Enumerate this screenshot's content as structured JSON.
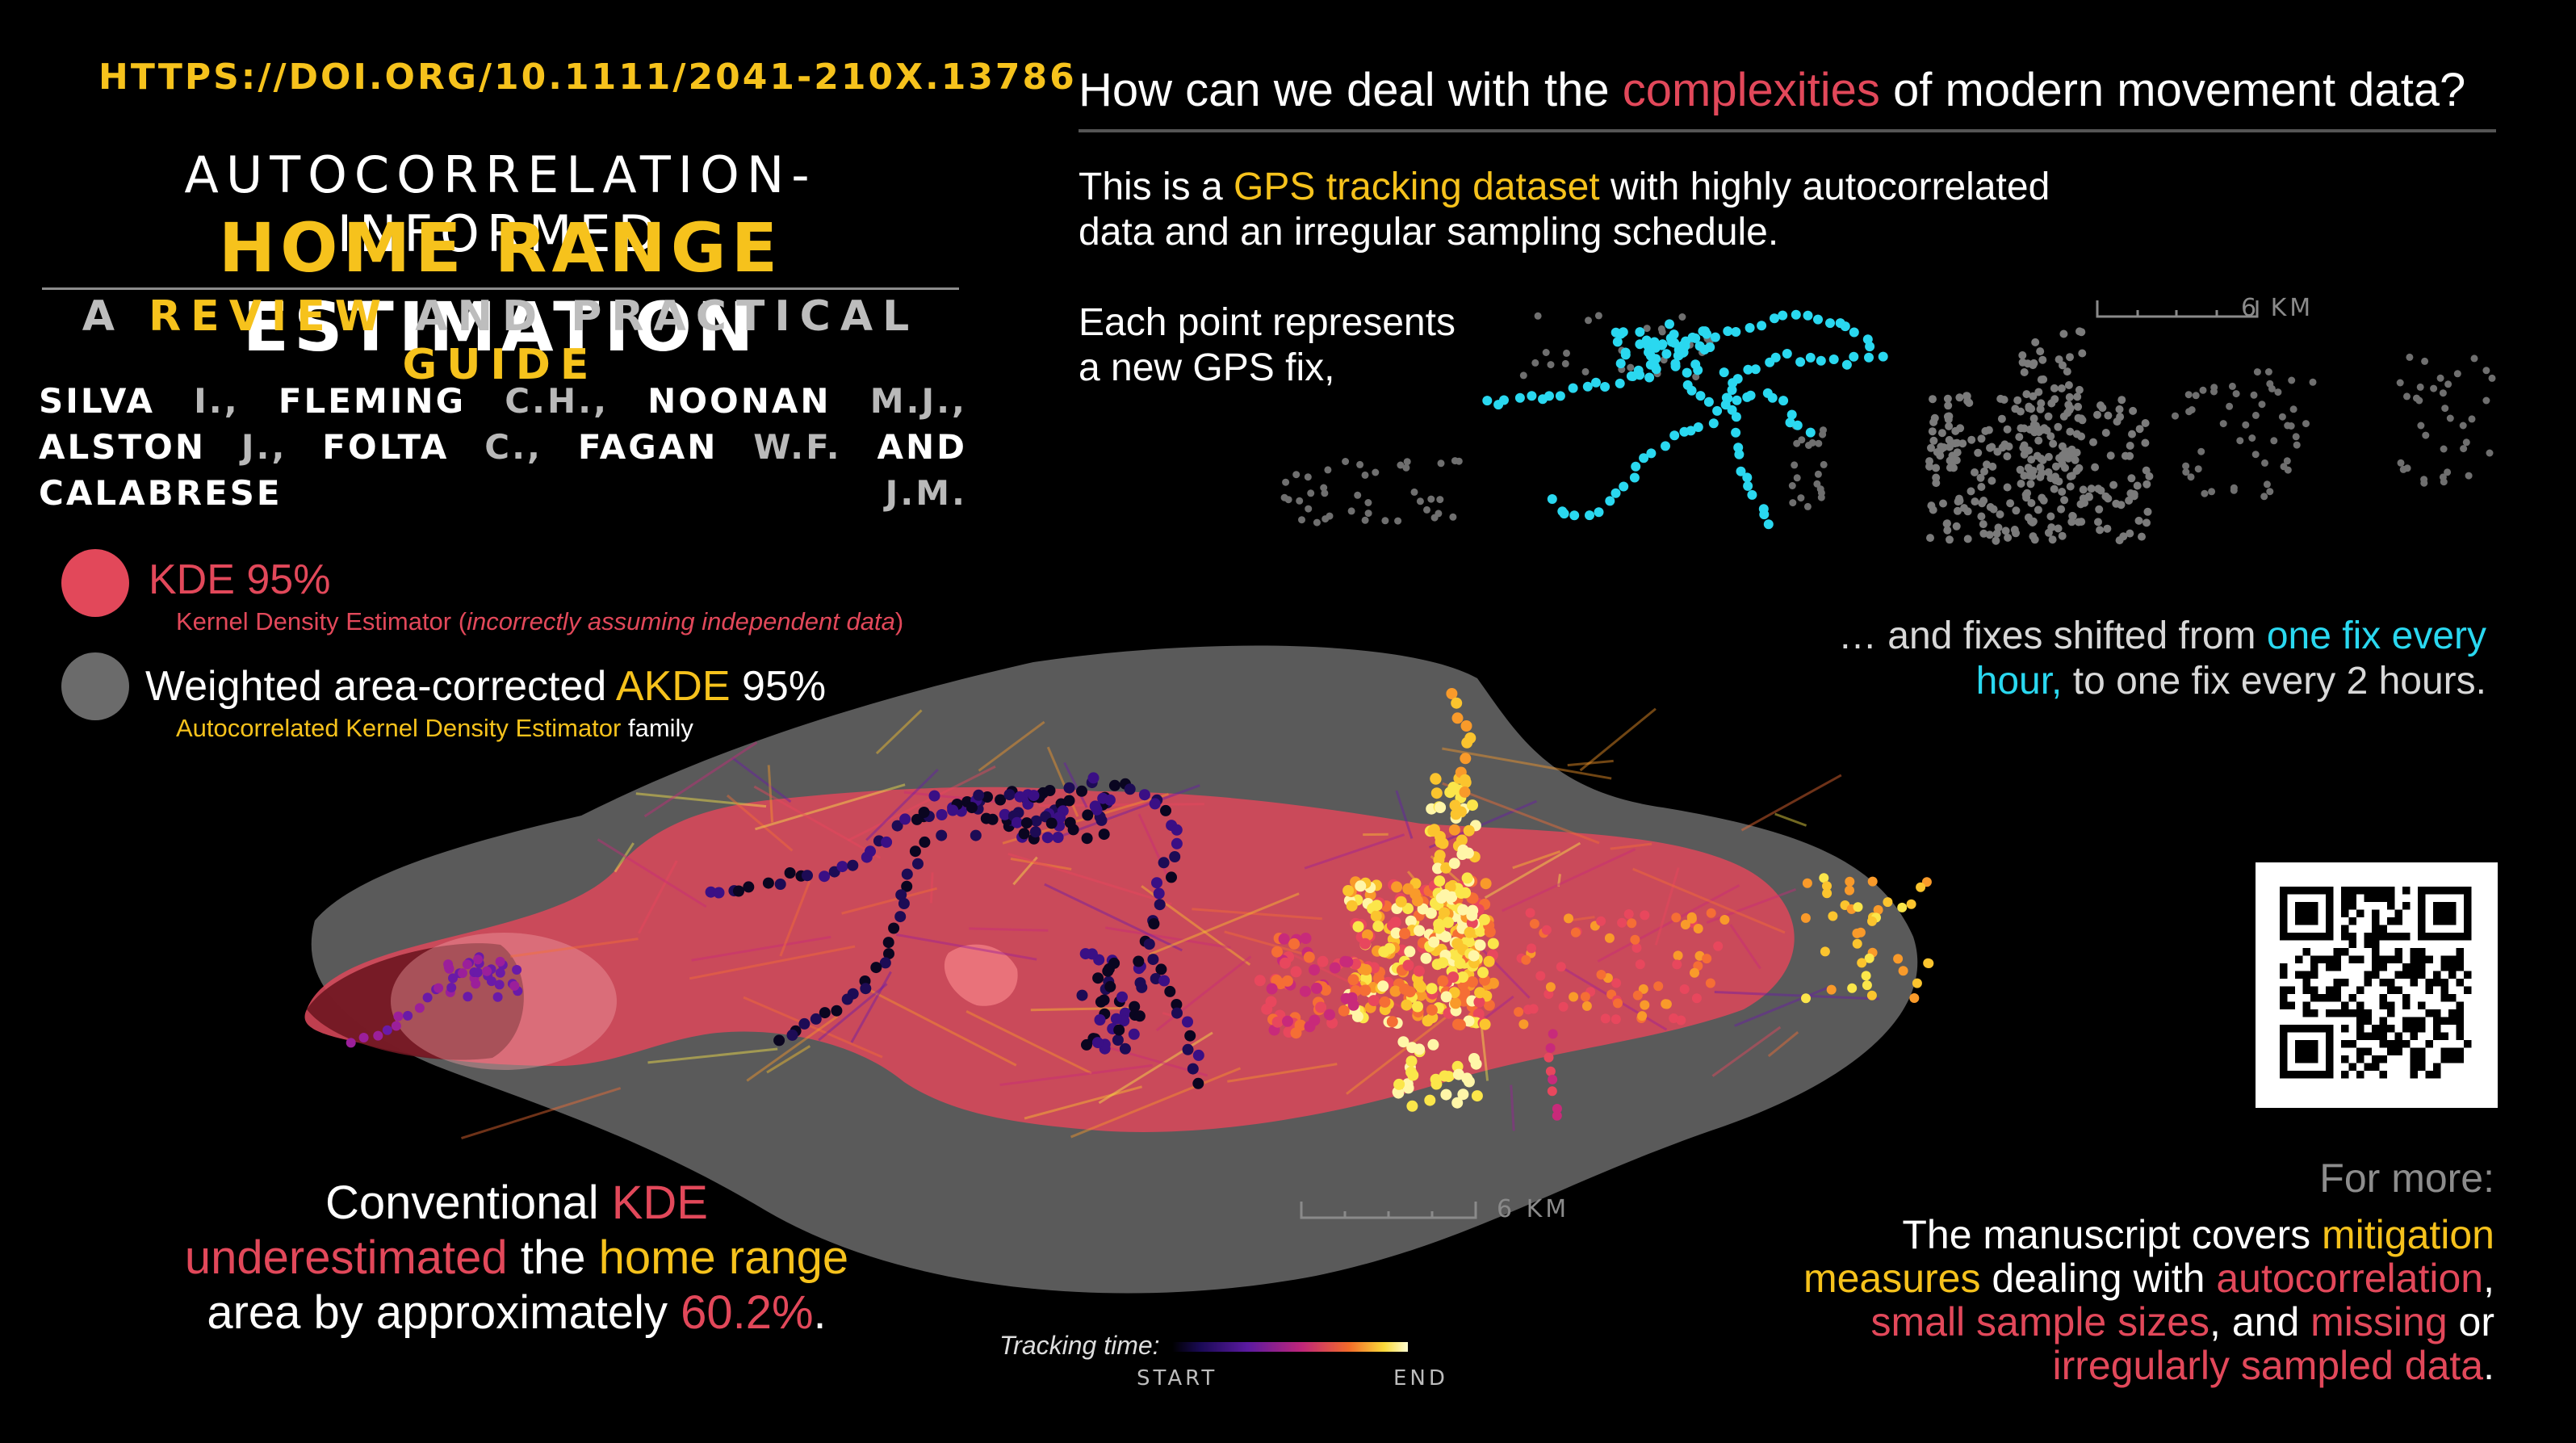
{
  "header": {
    "doi": "HTTPS://DOI.ORG/10.1111/2041-210X.13786",
    "title_line1": "AUTOCORRELATION-INFORMED",
    "title_line2_a": "HOME RANGE",
    "title_line2_b": " ESTIMATION",
    "subtitle_a": "A ",
    "subtitle_b": "REVIEW",
    "subtitle_c": " AND PRACTICAL ",
    "subtitle_d": "GUIDE",
    "authors": [
      {
        "name": "SILVA",
        "init": " I.,"
      },
      {
        "name": " FLEMING",
        "init": " C.H.,"
      },
      {
        "name": " NOONAN",
        "init": " M.J.,"
      },
      {
        "name": " ALSTON",
        "init": " J.,"
      },
      {
        "name": " FOLTA",
        "init": " C.,"
      },
      {
        "name": " FAGAN",
        "init": " W.F."
      },
      {
        "name": " AND",
        "init": ""
      },
      {
        "name": " CALABRESE",
        "init": " J.M."
      }
    ]
  },
  "legend": {
    "kde_label": "KDE 95%",
    "kde_desc_a": "Kernel Density Estimator (",
    "kde_desc_b": "incorrectly assuming independent data",
    "kde_desc_c": ")",
    "akde_label_a": "Weighted area-corrected ",
    "akde_label_b": "AKDE",
    "akde_label_c": " 95%",
    "akde_desc_a": "Autocorrelated Kernel Density Estimator",
    "akde_desc_b": " family"
  },
  "question": {
    "a": "How can we deal with the ",
    "b": "complexities",
    "c": " of modern movement data?"
  },
  "para1": {
    "a": "This is a ",
    "b": "GPS tracking dataset",
    "c": " with highly autocorrelated",
    "d": "data and an irregular sampling schedule."
  },
  "para2": {
    "line1": "Each point represents",
    "line2": "a new GPS fix,"
  },
  "para3": {
    "a": "… and fixes shifted from ",
    "b": "one fix every",
    "c": "hour,",
    "d": " to one fix every 2 hours."
  },
  "scale_label": "6 KM",
  "conclusion": {
    "a": "Conventional ",
    "b": "KDE",
    "c": "underestimated",
    "d": " the ",
    "e": "home range",
    "f": "area by approximately ",
    "g": "60.2%",
    "h": "."
  },
  "tracking": {
    "label": "Tracking time:",
    "start": "START",
    "end": "END"
  },
  "formore": "For more:",
  "manuscript": {
    "a": "The manuscript covers ",
    "b": "mitigation",
    "c": "measures",
    "d": " dealing with ",
    "e": "autocorrelation",
    "f": ",",
    "g": "small sample sizes",
    "h": ", and ",
    "i": "missing",
    "j": " or",
    "k": "irregularly sampled data",
    "l": "."
  },
  "colors": {
    "accent_yellow": "#f6c21c",
    "accent_red": "#e2485a",
    "accent_cyan": "#2ad8f0",
    "akde_grey": "#5a5a5a",
    "kde_red": "#d9485a",
    "background": "#000000"
  }
}
